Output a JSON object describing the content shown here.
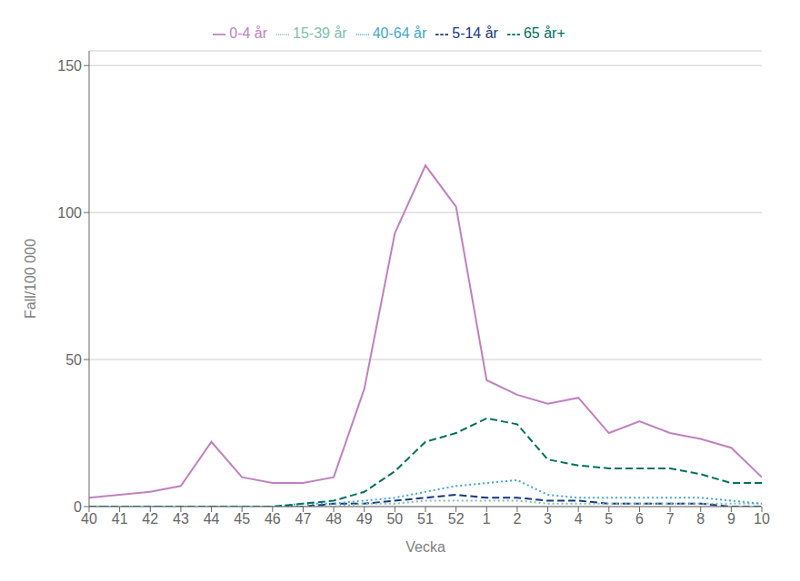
{
  "chart_data": {
    "type": "line",
    "xlabel": "Vecka",
    "ylabel": "Fall/100 000",
    "categories": [
      "40",
      "41",
      "42",
      "43",
      "44",
      "45",
      "46",
      "47",
      "48",
      "49",
      "50",
      "51",
      "52",
      "1",
      "2",
      "3",
      "4",
      "5",
      "6",
      "7",
      "8",
      "9",
      "10"
    ],
    "series": [
      {
        "name": "0-4 år",
        "color": "#c080c0",
        "line_style": "solid",
        "values": [
          3,
          4,
          5,
          7,
          22,
          10,
          8,
          8,
          10,
          40,
          93,
          116,
          102,
          43,
          38,
          35,
          37,
          25,
          29,
          25,
          23,
          20,
          10
        ]
      },
      {
        "name": "5-14 år",
        "color": "#1a3580",
        "line_style": "dashed",
        "values": [
          0,
          0,
          0,
          0,
          0,
          0,
          0,
          0,
          1,
          1,
          2,
          3,
          4,
          3,
          3,
          2,
          2,
          1,
          1,
          1,
          1,
          0,
          0
        ]
      },
      {
        "name": "15-39 år",
        "color": "#80c0b0",
        "line_style": "dotted",
        "values": [
          0,
          0,
          0,
          0,
          0,
          0,
          0,
          0,
          0,
          1,
          1,
          2,
          2,
          2,
          2,
          1,
          1,
          1,
          1,
          1,
          1,
          1,
          1
        ]
      },
      {
        "name": "40-64 år",
        "color": "#40a8d0",
        "line_style": "dotted",
        "values": [
          0,
          0,
          0,
          0,
          0,
          0,
          0,
          1,
          1,
          2,
          3,
          5,
          7,
          8,
          9,
          4,
          3,
          3,
          3,
          3,
          3,
          2,
          1
        ]
      },
      {
        "name": "65 år+",
        "color": "#007060",
        "line_style": "dashed",
        "values": [
          0,
          0,
          0,
          0,
          0,
          0,
          0,
          1,
          2,
          5,
          12,
          22,
          25,
          30,
          28,
          16,
          14,
          13,
          13,
          13,
          11,
          8,
          8
        ]
      }
    ],
    "ylim": [
      0,
      155
    ],
    "yticks": [
      0,
      50,
      100,
      150
    ],
    "grid": true,
    "legend": "top"
  }
}
